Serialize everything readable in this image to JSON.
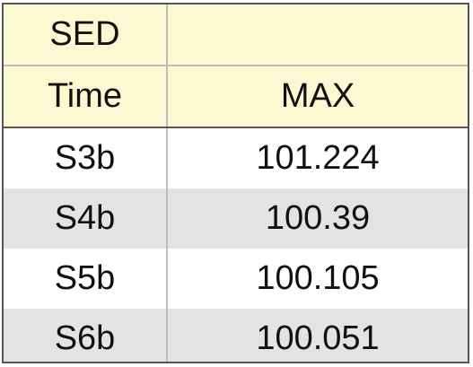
{
  "table": {
    "header_row_1": [
      "SED",
      ""
    ],
    "header_row_2": [
      "Time",
      "MAX"
    ],
    "rows": [
      {
        "time": "S3b",
        "max": "101.224"
      },
      {
        "time": "S4b",
        "max": "100.39"
      },
      {
        "time": "S5b",
        "max": "100.105"
      },
      {
        "time": "S6b",
        "max": "100.051"
      }
    ]
  },
  "colors": {
    "header_bg": "#fcf8d2",
    "stripe_bg": "#e3e3e3",
    "border": "#555555"
  }
}
